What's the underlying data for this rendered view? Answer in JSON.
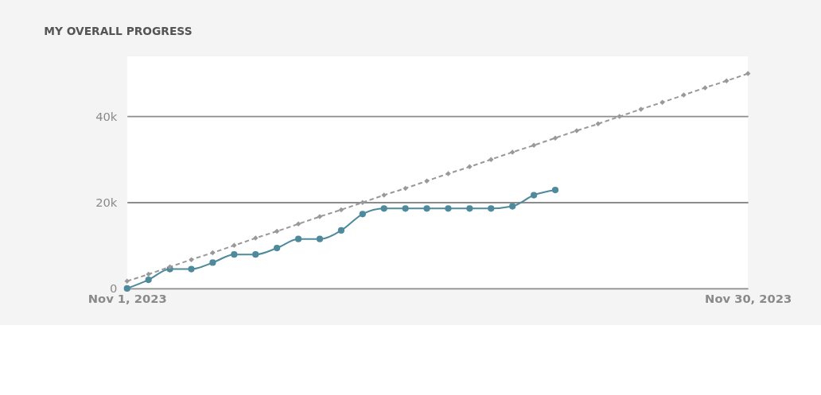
{
  "chart_data": {
    "type": "line",
    "title": "MY OVERALL PROGRESS",
    "xlim": [
      "2023-11-01",
      "2023-11-30"
    ],
    "xticks": [
      {
        "value": "2023-11-01",
        "label": "Nov 1, 2023"
      },
      {
        "value": "2023-11-30",
        "label": "Nov 30, 2023"
      }
    ],
    "ylim": [
      0,
      54000
    ],
    "yticks": [
      0,
      {
        "value": 20000,
        "label": "20k"
      },
      {
        "value": 40000,
        "label": "40k"
      }
    ],
    "grid": "y",
    "series": [
      {
        "color": "#999999",
        "marker": "diamond",
        "line_style": "dashed",
        "x": [
          "2023-11-01",
          "2023-11-02",
          "2023-11-03",
          "2023-11-04",
          "2023-11-05",
          "2023-11-06",
          "2023-11-07",
          "2023-11-08",
          "2023-11-09",
          "2023-11-10",
          "2023-11-11",
          "2023-11-12",
          "2023-11-13",
          "2023-11-14",
          "2023-11-15",
          "2023-11-16",
          "2023-11-17",
          "2023-11-18",
          "2023-11-19",
          "2023-11-20",
          "2023-11-21",
          "2023-11-22",
          "2023-11-23",
          "2023-11-24",
          "2023-11-25",
          "2023-11-26",
          "2023-11-27",
          "2023-11-28",
          "2023-11-29",
          "2023-11-30"
        ],
        "values": [
          1700,
          3300,
          5000,
          6700,
          8300,
          10000,
          11700,
          13300,
          15000,
          16700,
          18300,
          20000,
          21700,
          23300,
          25000,
          26700,
          28300,
          30000,
          31700,
          33300,
          35000,
          36700,
          38300,
          40000,
          41700,
          43300,
          45000,
          46700,
          48300,
          50000
        ]
      },
      {
        "color": "#4e8a9b",
        "marker": "circle",
        "line_style": "solid",
        "x": [
          "2023-11-01",
          "2023-11-02",
          "2023-11-03",
          "2023-11-04",
          "2023-11-05",
          "2023-11-06",
          "2023-11-07",
          "2023-11-08",
          "2023-11-09",
          "2023-11-10",
          "2023-11-11",
          "2023-11-12",
          "2023-11-13",
          "2023-11-14",
          "2023-11-15",
          "2023-11-16",
          "2023-11-17",
          "2023-11-18",
          "2023-11-19",
          "2023-11-20",
          "2023-11-21"
        ],
        "values": [
          0,
          2000,
          4500,
          4500,
          6000,
          7900,
          7900,
          9400,
          11500,
          11500,
          13500,
          17300,
          18600,
          18600,
          18600,
          18600,
          18600,
          18600,
          19100,
          21700,
          22900
        ]
      }
    ]
  }
}
